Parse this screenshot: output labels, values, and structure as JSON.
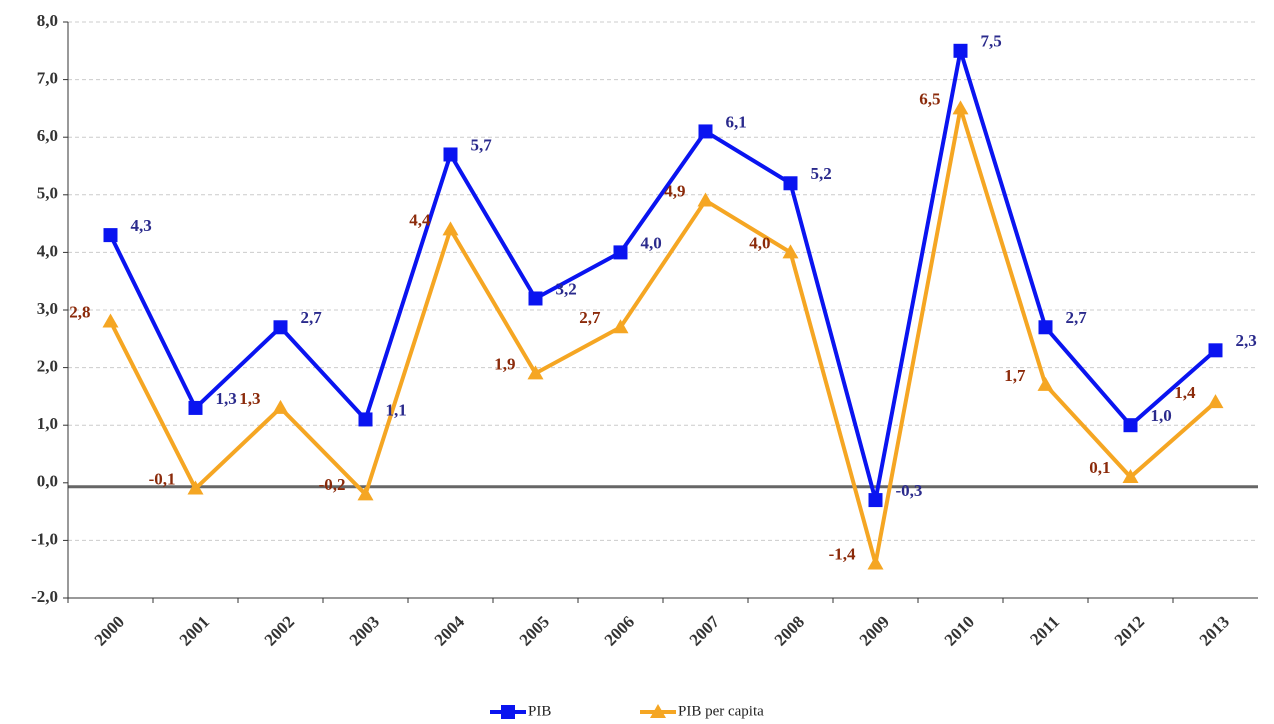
{
  "chart_data": {
    "type": "line",
    "categories": [
      "2000",
      "2001",
      "2002",
      "2003",
      "2004",
      "2005",
      "2006",
      "2007",
      "2008",
      "2009",
      "2010",
      "2011",
      "2012",
      "2013"
    ],
    "series": [
      {
        "name": "PIB",
        "color": "#0a14f0",
        "label_color": "#2a2a8c",
        "marker": "square",
        "values": [
          4.3,
          1.3,
          2.7,
          1.1,
          5.7,
          3.2,
          4.0,
          6.1,
          5.2,
          -0.3,
          7.5,
          2.7,
          1.0,
          2.3
        ],
        "value_labels": [
          "4,3",
          "1,3",
          "2,7",
          "1,1",
          "5,7",
          "3,2",
          "4,0",
          "6,1",
          "5,2",
          "-0,3",
          "7,5",
          "2,7",
          "1,0",
          "2,3"
        ]
      },
      {
        "name": "PIB per capita",
        "color": "#f5a623",
        "label_color": "#8b2a0a",
        "marker": "triangle",
        "values": [
          2.8,
          -0.1,
          1.3,
          -0.2,
          4.4,
          1.9,
          2.7,
          4.9,
          4.0,
          -1.4,
          6.5,
          1.7,
          0.1,
          1.4
        ],
        "value_labels": [
          "2,8",
          "-0,1",
          "1,3",
          "-0,2",
          "4,4",
          "1,9",
          "2,7",
          "4,9",
          "4,0",
          "-1,4",
          "6,5",
          "1,7",
          "0,1",
          "1,4"
        ]
      }
    ],
    "ylim": [
      -2,
      8
    ],
    "yticks": [
      {
        "value": -2,
        "label": "-2,0"
      },
      {
        "value": -1,
        "label": "-1,0"
      },
      {
        "value": 0,
        "label": "0,0"
      },
      {
        "value": 1,
        "label": "1,0"
      },
      {
        "value": 2,
        "label": "2,0"
      },
      {
        "value": 3,
        "label": "3,0"
      },
      {
        "value": 4,
        "label": "4,0"
      },
      {
        "value": 5,
        "label": "5,0"
      },
      {
        "value": 6,
        "label": "6,0"
      },
      {
        "value": 7,
        "label": "7,0"
      },
      {
        "value": 8,
        "label": "8,0"
      }
    ],
    "grid": true,
    "legend": "bottom"
  }
}
